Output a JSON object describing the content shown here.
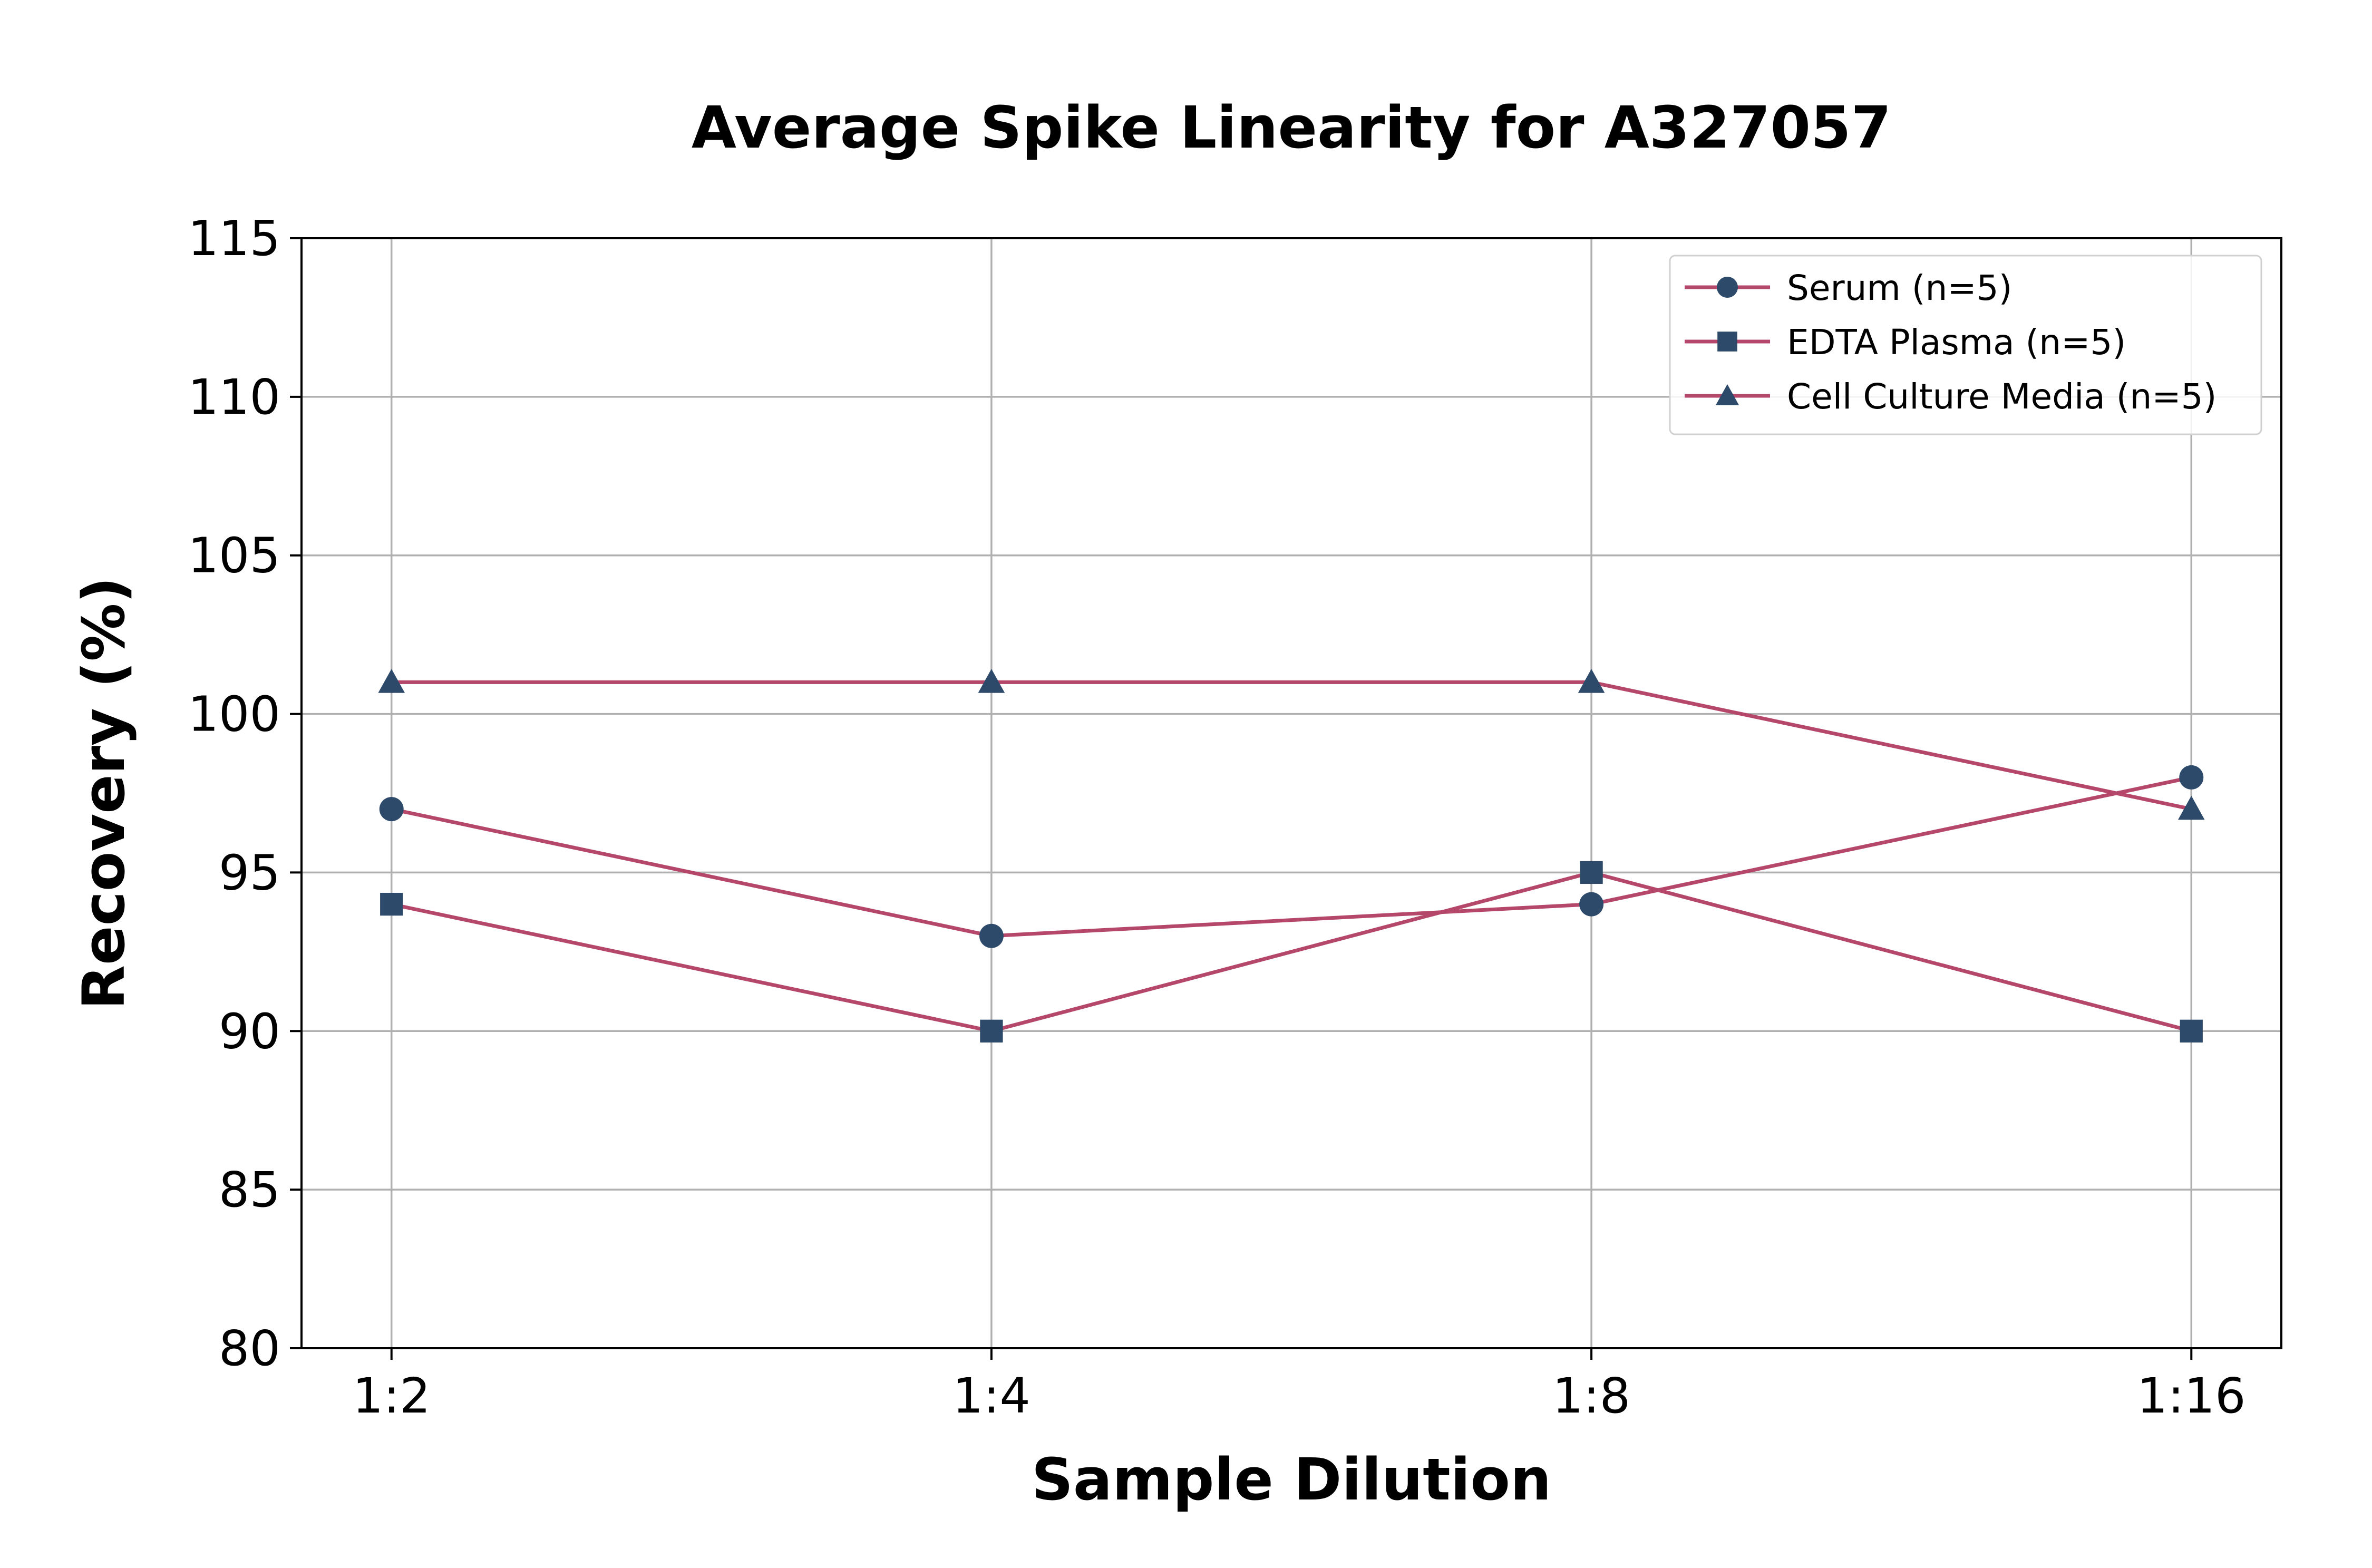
{
  "chart_data": {
    "type": "line",
    "title": "Average Spike Linearity for A327057",
    "xlabel": "Sample Dilution",
    "ylabel": "Recovery (%)",
    "categories": [
      "1:2",
      "1:4",
      "1:8",
      "1:16"
    ],
    "ylim": [
      80,
      115
    ],
    "yticks": [
      80,
      85,
      90,
      95,
      100,
      105,
      110,
      115
    ],
    "grid": true,
    "legend_position": "top-right",
    "line_color": "#b5476b",
    "marker_color": "#2d4a6b",
    "series": [
      {
        "name": "Serum (n=5)",
        "marker": "circle",
        "values": [
          97,
          93,
          94,
          98
        ]
      },
      {
        "name": "EDTA Plasma (n=5)",
        "marker": "square",
        "values": [
          94,
          90,
          95,
          90
        ]
      },
      {
        "name": "Cell Culture Media (n=5)",
        "marker": "triangle",
        "values": [
          101,
          101,
          101,
          97
        ]
      }
    ]
  }
}
